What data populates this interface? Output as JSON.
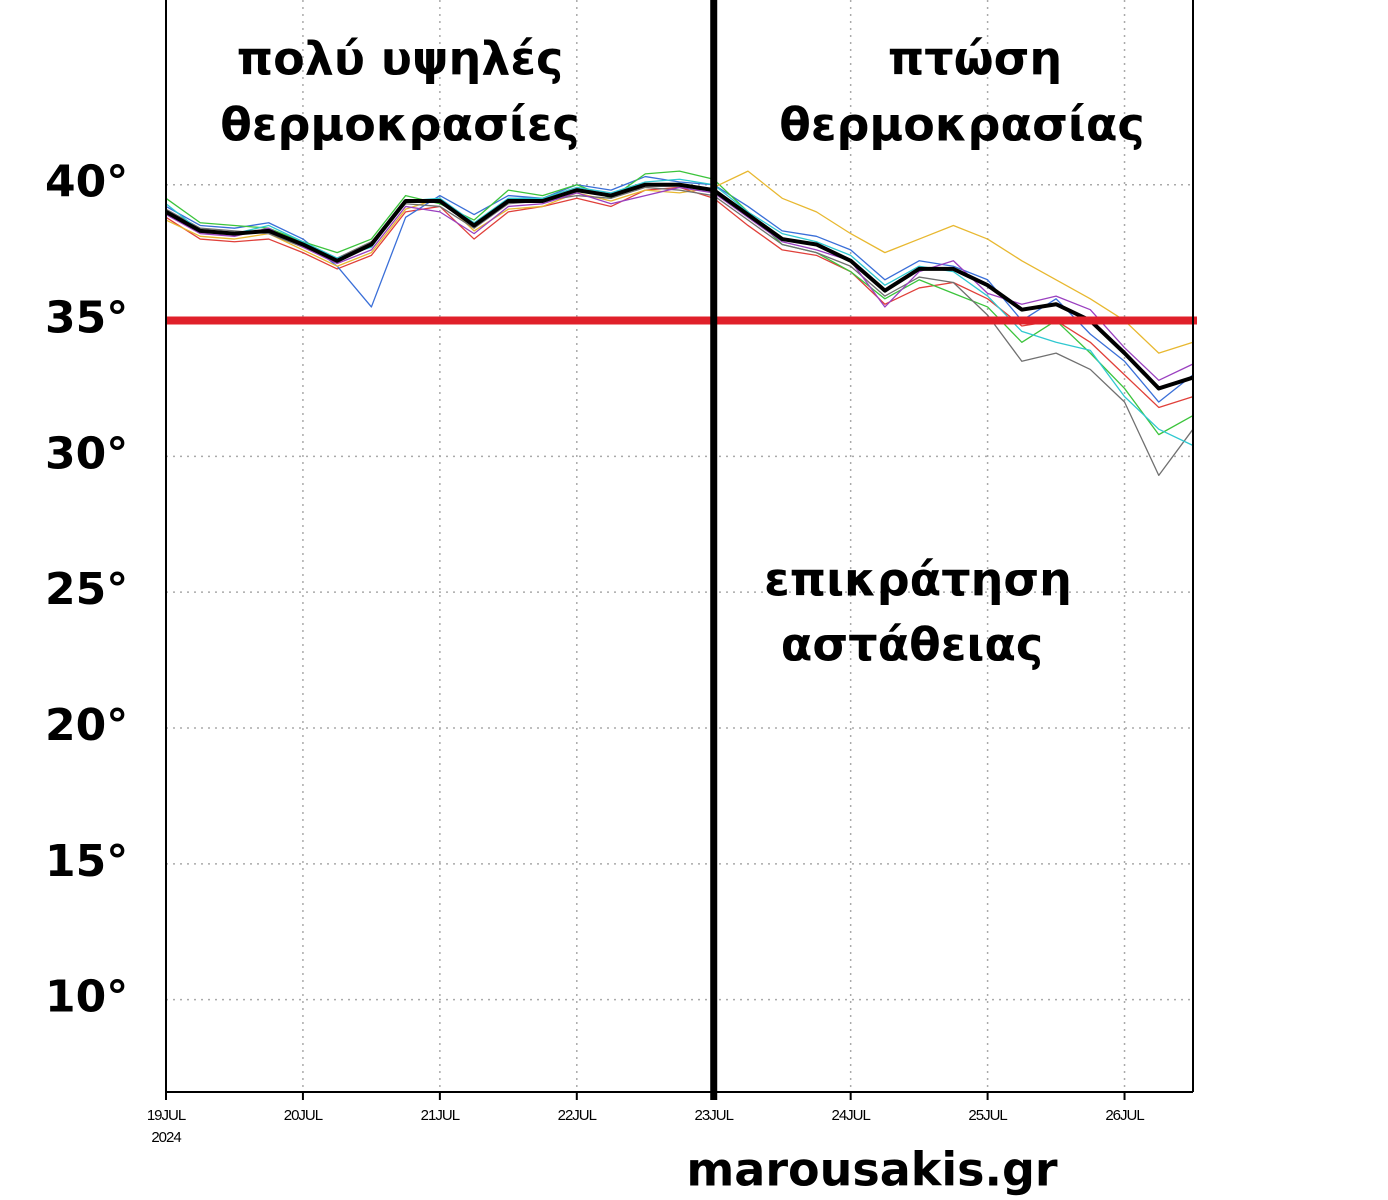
{
  "chart_data": {
    "type": "line",
    "categories": [
      "19JUL",
      null,
      null,
      null,
      "20JUL",
      null,
      null,
      null,
      "21JUL",
      null,
      null,
      null,
      "22JUL",
      null,
      null,
      null,
      "23JUL",
      null,
      null,
      null,
      "24JUL",
      null,
      null,
      null,
      "25JUL",
      null,
      null,
      null,
      "26JUL",
      null,
      null
    ],
    "year_label": "2024",
    "series": [
      {
        "color": "#e0403a",
        "values": [
          38.8,
          38.0,
          37.9,
          38.0,
          37.5,
          36.9,
          37.4,
          39.0,
          39.2,
          38.0,
          39.0,
          39.2,
          39.5,
          39.2,
          39.8,
          39.9,
          39.5,
          38.5,
          37.6,
          37.4,
          36.8,
          35.6,
          36.2,
          36.4,
          35.8,
          34.8,
          35.0,
          34.2,
          33.0,
          31.8,
          32.2
        ]
      },
      {
        "color": "#3a6fd8",
        "values": [
          39.2,
          38.5,
          38.4,
          38.6,
          38.0,
          37.0,
          35.5,
          38.8,
          39.6,
          38.9,
          39.6,
          39.5,
          40.0,
          39.8,
          40.3,
          40.1,
          40.0,
          39.2,
          38.3,
          38.1,
          37.6,
          36.5,
          37.2,
          37.0,
          36.5,
          35.0,
          35.8,
          34.5,
          33.5,
          32.0,
          33.0
        ]
      },
      {
        "color": "#3cc43c",
        "values": [
          39.5,
          38.6,
          38.5,
          38.4,
          37.9,
          37.5,
          38.0,
          39.6,
          39.3,
          38.7,
          39.8,
          39.6,
          40.0,
          39.5,
          40.4,
          40.5,
          40.2,
          39.0,
          37.8,
          37.5,
          36.8,
          35.8,
          36.5,
          36.0,
          35.5,
          34.2,
          35.0,
          33.8,
          32.5,
          30.8,
          31.5
        ]
      },
      {
        "color": "#e8b830",
        "values": [
          38.7,
          38.1,
          38.0,
          38.2,
          37.6,
          37.0,
          37.5,
          39.1,
          39.5,
          38.3,
          39.1,
          39.2,
          39.7,
          39.4,
          39.8,
          39.7,
          39.9,
          40.5,
          39.5,
          39.0,
          38.2,
          37.5,
          38.0,
          38.5,
          38.0,
          37.2,
          36.5,
          35.8,
          35.0,
          33.8,
          34.2
        ]
      },
      {
        "color": "#707070",
        "values": [
          39.1,
          38.4,
          38.3,
          38.2,
          37.7,
          37.3,
          37.9,
          39.3,
          39.2,
          38.4,
          39.3,
          39.4,
          39.6,
          39.5,
          39.9,
          39.8,
          39.6,
          38.7,
          37.8,
          37.5,
          37.0,
          35.9,
          36.6,
          36.4,
          35.2,
          33.5,
          33.8,
          33.2,
          32.0,
          29.3,
          31.0
        ]
      },
      {
        "color": "#9a40c0",
        "values": [
          38.9,
          38.2,
          38.1,
          38.4,
          37.7,
          37.1,
          37.6,
          39.2,
          39.0,
          38.2,
          39.2,
          39.3,
          39.7,
          39.3,
          39.6,
          39.9,
          39.7,
          38.8,
          37.9,
          37.6,
          37.2,
          35.5,
          36.8,
          37.2,
          36.0,
          35.6,
          35.9,
          35.4,
          34.0,
          32.8,
          33.4
        ]
      },
      {
        "color": "#30c8d0",
        "values": [
          39.3,
          38.3,
          38.2,
          38.5,
          37.9,
          37.3,
          37.7,
          39.4,
          39.5,
          38.6,
          39.5,
          39.5,
          39.9,
          39.7,
          40.1,
          40.2,
          40.0,
          39.0,
          38.2,
          37.9,
          37.4,
          36.3,
          37.0,
          36.8,
          35.9,
          34.6,
          34.2,
          33.9,
          32.2,
          31.0,
          30.4
        ]
      },
      {
        "color": "#000000",
        "values": [
          39.0,
          38.3,
          38.2,
          38.3,
          37.8,
          37.2,
          37.8,
          39.4,
          39.4,
          38.5,
          39.4,
          39.4,
          39.8,
          39.6,
          40.0,
          40.0,
          39.8,
          38.9,
          38.0,
          37.8,
          37.2,
          36.1,
          36.9,
          36.9,
          36.3,
          35.4,
          35.6,
          35.0,
          33.8,
          32.5,
          32.9
        ]
      }
    ],
    "ylim": [
      6.6,
      46.8
    ],
    "yticks": [
      {
        "value": 10,
        "label": "10°"
      },
      {
        "value": 15,
        "label": "15°"
      },
      {
        "value": 20,
        "label": "20°"
      },
      {
        "value": 25,
        "label": "25°"
      },
      {
        "value": 30,
        "label": "30°"
      },
      {
        "value": 35,
        "label": "35°"
      },
      {
        "value": 40,
        "label": "40°"
      }
    ],
    "grid": true,
    "reference_line": {
      "value": 35,
      "color": "#e0202a"
    },
    "divider_at": "23JUL",
    "annotations": {
      "high": [
        "πολύ υψηλές",
        "θερμοκρασίες"
      ],
      "drop": [
        "πτώση",
        "θερμοκρασίας"
      ],
      "instability": [
        "επικράτηση",
        "αστάθειας"
      ]
    },
    "watermark": "marousakis.gr"
  }
}
